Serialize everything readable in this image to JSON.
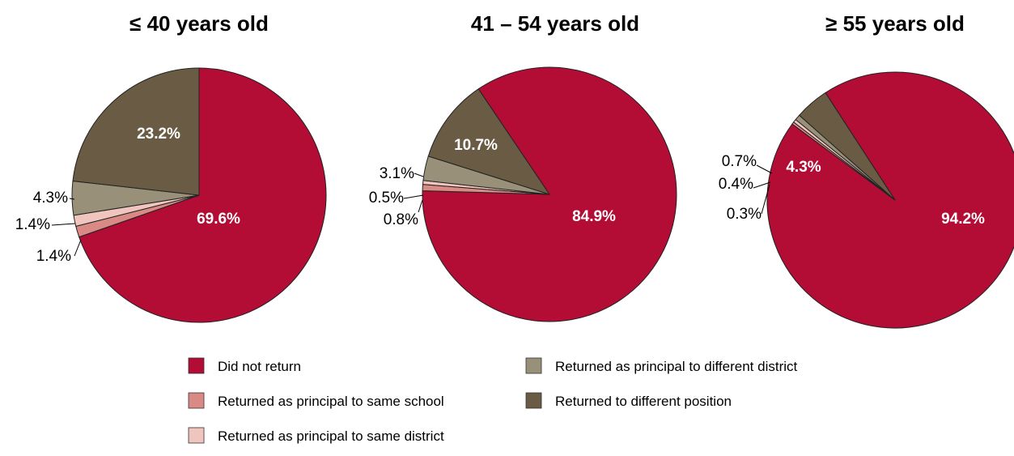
{
  "chart_data": [
    {
      "type": "pie",
      "title": "≤ 40 years old",
      "slices": [
        {
          "category": "Did not return",
          "value": 69.6,
          "label": "69.6%"
        },
        {
          "category": "Returned as principal to same school",
          "value": 1.4,
          "label": "1.4%"
        },
        {
          "category": "Returned as principal to same district",
          "value": 1.4,
          "label": "1.4%"
        },
        {
          "category": "Returned as principal to different district",
          "value": 4.3,
          "label": "4.3%"
        },
        {
          "category": "Returned to different position",
          "value": 23.2,
          "label": "23.2%"
        }
      ]
    },
    {
      "type": "pie",
      "title": "41 – 54 years old",
      "slices": [
        {
          "category": "Did not return",
          "value": 84.9,
          "label": "84.9%"
        },
        {
          "category": "Returned as principal to same school",
          "value": 0.8,
          "label": "0.8%"
        },
        {
          "category": "Returned as principal to same district",
          "value": 0.5,
          "label": "0.5%"
        },
        {
          "category": "Returned as principal to different district",
          "value": 3.1,
          "label": "3.1%"
        },
        {
          "category": "Returned to different position",
          "value": 10.7,
          "label": "10.7%"
        }
      ]
    },
    {
      "type": "pie",
      "title": "≥ 55 years old",
      "slices": [
        {
          "category": "Did not return",
          "value": 94.2,
          "label": "94.2%"
        },
        {
          "category": "Returned as principal to same school",
          "value": 0.3,
          "label": "0.3%"
        },
        {
          "category": "Returned as principal to same district",
          "value": 0.4,
          "label": "0.4%"
        },
        {
          "category": "Returned as principal to different district",
          "value": 0.7,
          "label": "0.7%"
        },
        {
          "category": "Returned to different position",
          "value": 4.3,
          "label": "4.3%"
        }
      ]
    }
  ],
  "legend": {
    "placement": "bottom",
    "items": [
      {
        "label": "Did not return",
        "color": "#b30c35"
      },
      {
        "label": "Returned as principal to same school",
        "color": "#d98a85"
      },
      {
        "label": "Returned as principal to same district",
        "color": "#efc5bd"
      },
      {
        "label": "Returned as principal to different district",
        "color": "#989079"
      },
      {
        "label": "Returned to different position",
        "color": "#6a5c44"
      }
    ]
  }
}
